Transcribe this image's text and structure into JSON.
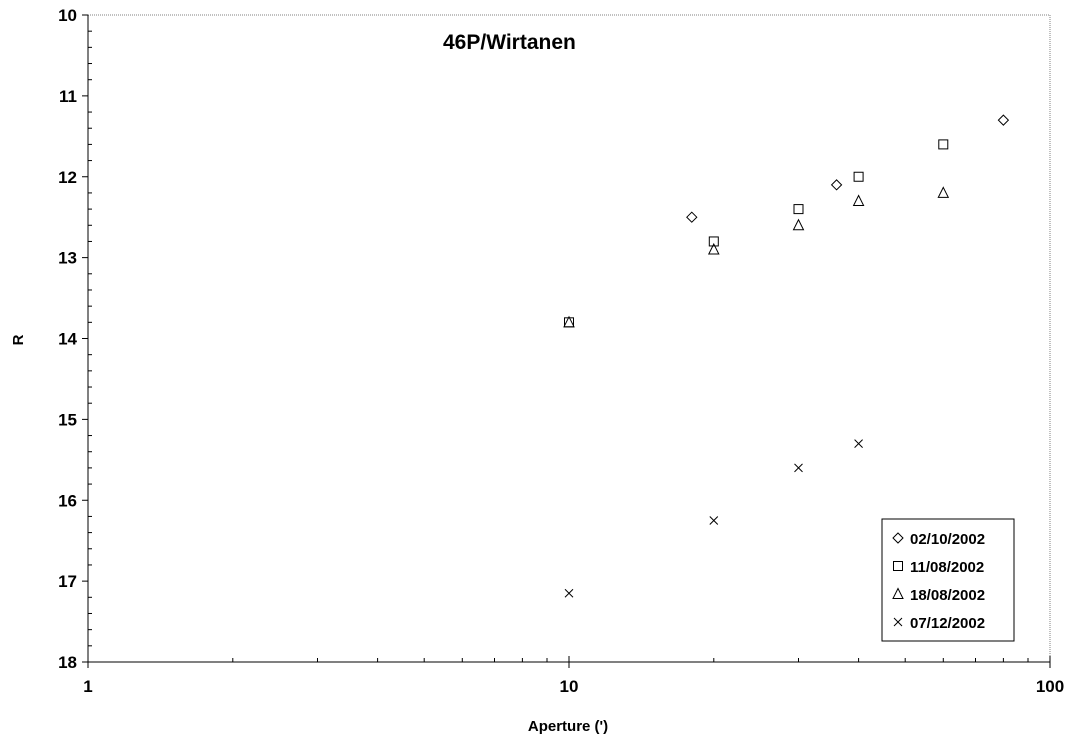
{
  "chart_data": {
    "type": "scatter",
    "title": "46P/Wirtanen",
    "xlabel": "Aperture (')",
    "ylabel": "R",
    "x_scale": "log",
    "xlim": [
      1,
      100
    ],
    "ylim": [
      10,
      18
    ],
    "y_inverted": true,
    "x_ticks": [
      "1",
      "10",
      "100"
    ],
    "y_ticks": [
      "10",
      "11",
      "12",
      "13",
      "14",
      "15",
      "16",
      "17",
      "18"
    ],
    "grid": false,
    "legend_position": "bottom-right",
    "series": [
      {
        "name": "02/10/2002",
        "marker": "diamond",
        "points": [
          [
            18,
            12.5
          ],
          [
            36,
            12.1
          ],
          [
            80,
            11.3
          ]
        ]
      },
      {
        "name": "11/08/2002",
        "marker": "square",
        "points": [
          [
            10,
            13.8
          ],
          [
            20,
            12.8
          ],
          [
            30,
            12.4
          ],
          [
            40,
            12.0
          ],
          [
            60,
            11.6
          ]
        ]
      },
      {
        "name": "18/08/2002",
        "marker": "triangle",
        "points": [
          [
            10,
            13.8
          ],
          [
            20,
            12.9
          ],
          [
            30,
            12.6
          ],
          [
            40,
            12.3
          ],
          [
            60,
            12.2
          ]
        ]
      },
      {
        "name": "07/12/2002",
        "marker": "cross",
        "points": [
          [
            10,
            17.15
          ],
          [
            20,
            16.25
          ],
          [
            30,
            15.6
          ],
          [
            40,
            15.3
          ]
        ]
      }
    ]
  }
}
